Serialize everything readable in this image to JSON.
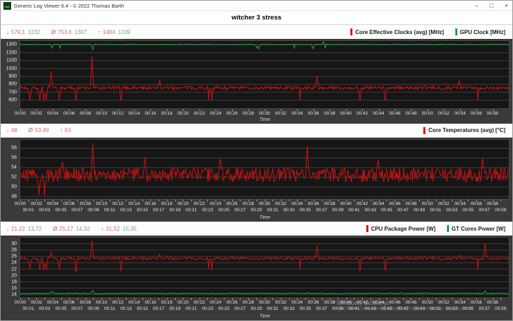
{
  "window": {
    "title": "Generic Log Viewer 6.4 - © 2022 Thomas Barth",
    "controls": {
      "minimize": "–",
      "maximize": "□",
      "close": "×"
    }
  },
  "header": {
    "title": "witcher 3 stress"
  },
  "watermark": {
    "line1": "Windows aktivieren",
    "line2": "Wechseln Sie zu den Einstellungen, um Windows zu aktivieren."
  },
  "time_ticks": {
    "even": [
      "00:00",
      "00:02",
      "00:04",
      "00:06",
      "00:08",
      "00:10",
      "00:12",
      "00:14",
      "00:16",
      "00:18",
      "00:20",
      "00:22",
      "00:24",
      "00:26",
      "00:28",
      "00:30",
      "00:32",
      "00:34",
      "00:36",
      "00:38",
      "00:40",
      "00:42",
      "00:44",
      "00:46",
      "00:48",
      "00:50",
      "00:52",
      "00:54",
      "00:56",
      "00:58"
    ],
    "odd": [
      "00:01",
      "00:03",
      "00:05",
      "00:07",
      "00:09",
      "00:11",
      "00:13",
      "00:15",
      "00:17",
      "00:19",
      "00:21",
      "00:23",
      "00:25",
      "00:27",
      "00:29",
      "00:31",
      "00:33",
      "00:35",
      "00:37",
      "00:39",
      "00:41",
      "00:43",
      "00:45",
      "00:47",
      "00:49",
      "00:51",
      "00:53",
      "00:55",
      "00:57",
      "00:59"
    ]
  },
  "panels": [
    {
      "id": "core-clocks",
      "stats": {
        "groups": [
          {
            "symbol": "↓",
            "values": [
              "579,1",
              "1232"
            ]
          },
          {
            "symbol": "Ø",
            "values": [
              "753,6",
              "1307"
            ]
          },
          {
            "symbol": "↑",
            "values": [
              "1484",
              "1339"
            ]
          }
        ]
      },
      "value_colors": [
        "#d96b6b",
        "#74a874"
      ],
      "legend": [
        {
          "label": "Core Effective Clocks (avg) [MHz]",
          "color": "#e01010"
        },
        {
          "label": "GPU Clock [MHz]",
          "color": "#15a53e"
        }
      ],
      "chart_data": {
        "type": "line",
        "xlabel": "Time",
        "x_range_minutes": [
          0,
          60
        ],
        "staggered_x": false,
        "ylim": [
          593,
          1348
        ],
        "yticks": [
          600,
          700,
          800,
          900,
          1000,
          1100,
          1200,
          1300
        ],
        "series": [
          {
            "name": "Core Effective Clocks (avg) [MHz]",
            "color": "#cf1212",
            "min": 579.1,
            "avg": 753.6,
            "max": 1484,
            "baseline": 756,
            "noise": 24,
            "seed": 7,
            "dip_prob": 0.016,
            "dip_to": 601,
            "events": [
              [
                1.2,
                602
              ],
              [
                2.4,
                603
              ],
              [
                2.9,
                602
              ],
              [
                3.2,
                604
              ],
              [
                3.8,
                968
              ],
              [
                4.8,
                602
              ],
              [
                8.85,
                1152
              ],
              [
                17.1,
                852
              ],
              [
                36.5,
                905
              ],
              [
                53.9,
                845
              ]
            ]
          },
          {
            "name": "GPU Clock [MHz]",
            "color": "#15a53e",
            "min": 1232,
            "avg": 1307,
            "max": 1339,
            "baseline": 1304,
            "noise": 5,
            "seed": 21,
            "dip_prob": 0.006,
            "dip_to": 1252,
            "events": [
              [
                3.9,
                1258
              ],
              [
                8.9,
                1240
              ],
              [
                29.0,
                1260
              ],
              [
                36.0,
                1250
              ],
              [
                37.3,
                1338
              ]
            ]
          }
        ]
      }
    },
    {
      "id": "core-temperatures",
      "stats": {
        "groups": [
          {
            "symbol": "↓",
            "values": [
              "48"
            ]
          },
          {
            "symbol": "Ø",
            "values": [
              "53,49"
            ]
          },
          {
            "symbol": "↑",
            "values": [
              "63"
            ]
          }
        ]
      },
      "value_colors": [
        "#d96b6b"
      ],
      "legend": [
        {
          "label": "Core Temperatures (avg) [°C]",
          "color": "#e01010"
        }
      ],
      "chart_data": {
        "type": "line",
        "xlabel": "Time",
        "x_range_minutes": [
          0,
          60
        ],
        "staggered_x": true,
        "ylim": [
          47.4,
          59.8
        ],
        "yticks": [
          48,
          50,
          52,
          54,
          56,
          58
        ],
        "series": [
          {
            "name": "Core Temperatures (avg) [°C]",
            "color": "#cf1212",
            "min": 48,
            "avg": 53.49,
            "max": 63,
            "baseline": 52.5,
            "noise": 1.5,
            "seed": 33,
            "dip_prob": 0.004,
            "dip_to": 48.6,
            "events": [
              [
                2.3,
                48.2
              ],
              [
                3.0,
                48.1
              ],
              [
                5.2,
                55.2
              ],
              [
                8.9,
                59.0
              ],
              [
                15.3,
                56.2
              ],
              [
                24.5,
                55.8
              ],
              [
                35.3,
                58.5
              ],
              [
                44.0,
                55.6
              ],
              [
                56.8,
                55.9
              ]
            ]
          }
        ]
      }
    },
    {
      "id": "power",
      "stats": {
        "groups": [
          {
            "symbol": "↓",
            "values": [
              "21,22",
              "13,72"
            ]
          },
          {
            "symbol": "Ø",
            "values": [
              "25,17",
              "14,32"
            ]
          },
          {
            "symbol": "↑",
            "values": [
              "31,52",
              "15,35"
            ]
          }
        ]
      },
      "value_colors": [
        "#d96b6b",
        "#74a874"
      ],
      "legend": [
        {
          "label": "CPU Package Power [W]",
          "color": "#e01010"
        },
        {
          "label": "GT Cores Power [W]",
          "color": "#15a53e"
        }
      ],
      "chart_data": {
        "type": "line",
        "xlabel": "Time",
        "x_range_minutes": [
          0,
          60
        ],
        "staggered_x": true,
        "ylim": [
          13.1,
          31.9
        ],
        "yticks": [
          14,
          16,
          18,
          20,
          22,
          24,
          26,
          28,
          30
        ],
        "series": [
          {
            "name": "CPU Package Power [W]",
            "color": "#cf1212",
            "min": 21.22,
            "avg": 25.17,
            "max": 31.52,
            "baseline": 25.35,
            "noise": 0.45,
            "seed": 7,
            "dip_prob": 0.016,
            "dip_to": 21.7,
            "events": [
              [
                1.2,
                21.9
              ],
              [
                2.4,
                21.8
              ],
              [
                2.9,
                21.8
              ],
              [
                3.2,
                21.9
              ],
              [
                3.8,
                27.3
              ],
              [
                4.8,
                21.8
              ],
              [
                8.85,
                30.9
              ],
              [
                17.1,
                26.6
              ],
              [
                36.5,
                29.4
              ],
              [
                53.9,
                26.3
              ],
              [
                57.1,
                30.1
              ]
            ]
          },
          {
            "name": "GT Cores Power [W]",
            "color": "#15a53e",
            "min": 13.72,
            "avg": 14.32,
            "max": 15.35,
            "baseline": 14.35,
            "noise": 0.18,
            "seed": 55,
            "dip_prob": 0,
            "dip_to": 14,
            "events": [
              [
                3.9,
                15.05
              ],
              [
                8.9,
                15.3
              ],
              [
                57.1,
                15.2
              ]
            ]
          }
        ]
      }
    }
  ]
}
